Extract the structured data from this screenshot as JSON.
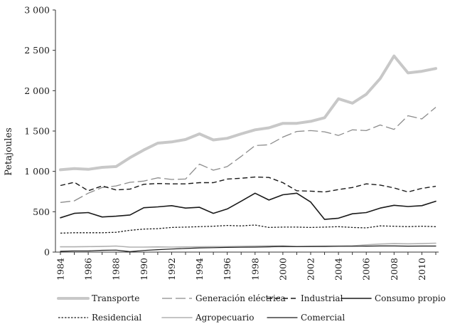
{
  "chart_data": {
    "type": "line",
    "title": "",
    "xlabel": "",
    "ylabel": "Petajoules",
    "ylim": [
      0,
      3000
    ],
    "yticks": [
      0,
      500,
      1000,
      1500,
      2000,
      2500,
      3000
    ],
    "ytick_labels": [
      "0",
      "500",
      "1 000",
      "1 500",
      "2 000",
      "2 500",
      "3 000"
    ],
    "xticks": [
      1984,
      1986,
      1988,
      1990,
      1992,
      1994,
      1996,
      1998,
      2000,
      2002,
      2004,
      2006,
      2008,
      2010
    ],
    "xtick_labels": [
      "1984",
      "1986",
      "1988",
      "1990",
      "1992",
      "1994",
      "1996",
      "1998",
      "2000",
      "2002",
      "2004",
      "2006",
      "2008",
      "2010"
    ],
    "grid": false,
    "legend_position": "bottom",
    "x": [
      1984,
      1985,
      1986,
      1987,
      1988,
      1989,
      1990,
      1991,
      1992,
      1993,
      1994,
      1995,
      1996,
      1997,
      1998,
      1999,
      2000,
      2001,
      2002,
      2003,
      2004,
      2005,
      2006,
      2007,
      2008,
      2009,
      2010,
      2011
    ],
    "series": [
      {
        "name": "Transporte",
        "color": "#c8c8c8",
        "style": "thick",
        "values": [
          1020,
          1035,
          1025,
          1050,
          1060,
          1170,
          1265,
          1350,
          1365,
          1395,
          1465,
          1390,
          1410,
          1465,
          1515,
          1540,
          1595,
          1595,
          1620,
          1665,
          1900,
          1845,
          1955,
          2150,
          2430,
          2220,
          2240,
          2275
        ]
      },
      {
        "name": "Generación eléctrica",
        "color": "#8c8c8c",
        "style": "longdash",
        "values": [
          615,
          635,
          730,
          800,
          820,
          865,
          880,
          920,
          900,
          905,
          1090,
          1015,
          1060,
          1185,
          1320,
          1330,
          1425,
          1495,
          1505,
          1490,
          1445,
          1515,
          1505,
          1575,
          1520,
          1690,
          1650,
          1795
        ]
      },
      {
        "name": "Industrial",
        "color": "#1a1a1a",
        "style": "dash",
        "values": [
          825,
          865,
          760,
          820,
          770,
          780,
          840,
          850,
          845,
          845,
          860,
          860,
          905,
          915,
          930,
          925,
          860,
          760,
          755,
          745,
          775,
          800,
          845,
          830,
          795,
          745,
          790,
          815
        ]
      },
      {
        "name": "Consumo propio",
        "color": "#1a1a1a",
        "style": "solid",
        "values": [
          425,
          480,
          490,
          435,
          445,
          460,
          550,
          560,
          575,
          545,
          555,
          480,
          535,
          630,
          730,
          645,
          710,
          730,
          620,
          405,
          420,
          475,
          490,
          545,
          580,
          565,
          575,
          630
        ]
      },
      {
        "name": "Residencial",
        "color": "#1a1a1a",
        "style": "dotted",
        "values": [
          235,
          240,
          240,
          240,
          245,
          270,
          285,
          290,
          305,
          310,
          315,
          320,
          330,
          325,
          335,
          305,
          310,
          310,
          305,
          310,
          315,
          305,
          300,
          325,
          320,
          315,
          320,
          315
        ]
      },
      {
        "name": "Agropecuario",
        "color": "#b0b0b0",
        "style": "solid",
        "values": [
          65,
          65,
          68,
          70,
          75,
          62,
          62,
          64,
          62,
          64,
          66,
          68,
          68,
          72,
          75,
          78,
          78,
          70,
          72,
          74,
          74,
          78,
          90,
          100,
          105,
          102,
          105,
          110
        ]
      },
      {
        "name": "Comercial",
        "color": "#1a1a1a",
        "style": "solid-thin",
        "values": [
          10,
          15,
          15,
          22,
          25,
          5,
          20,
          30,
          38,
          45,
          52,
          55,
          58,
          60,
          62,
          65,
          70,
          68,
          70,
          70,
          72,
          72,
          74,
          76,
          76,
          74,
          75,
          75
        ]
      }
    ]
  }
}
